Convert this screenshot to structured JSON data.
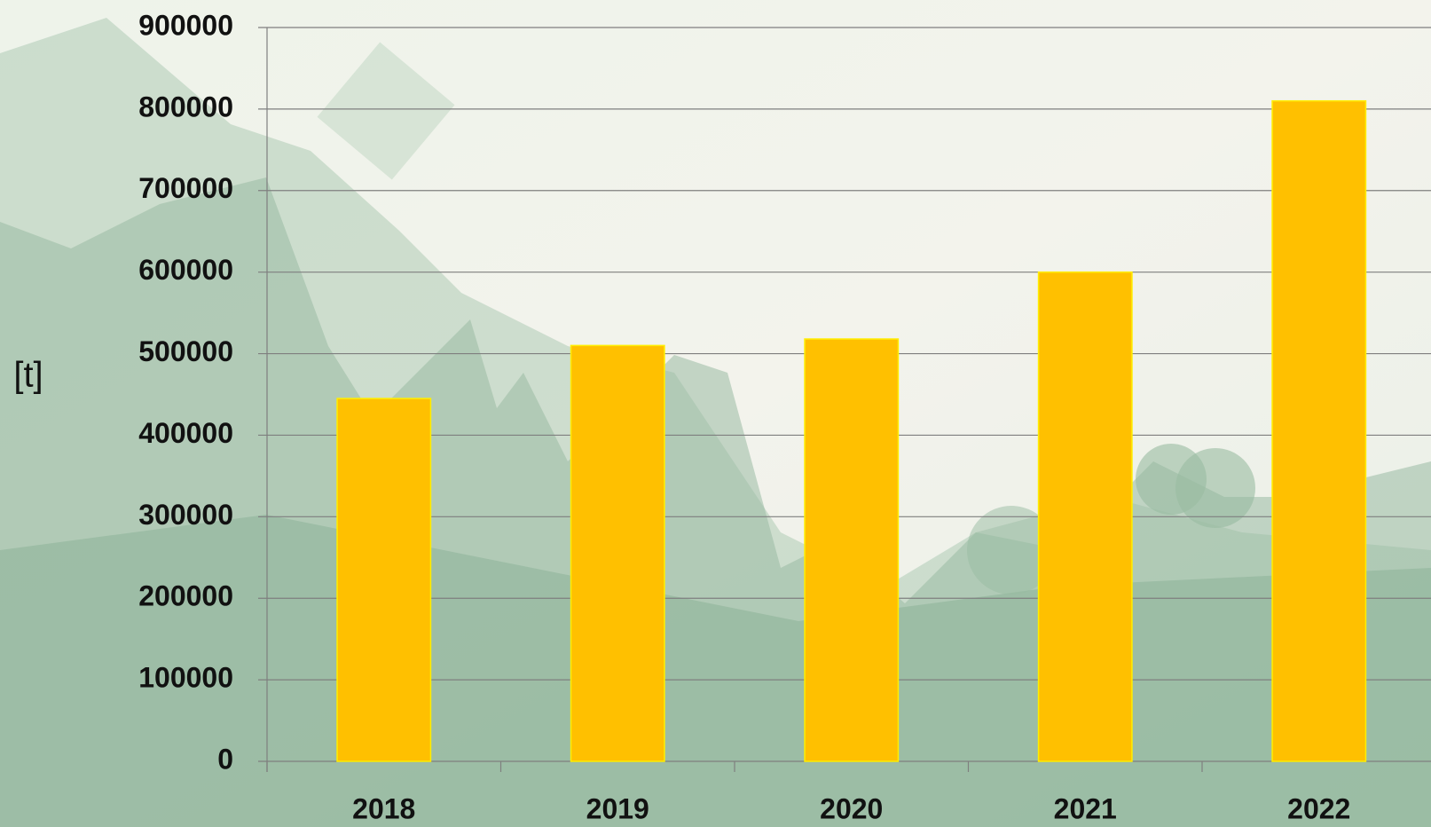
{
  "chart_data": {
    "type": "bar",
    "y_label": "[t]",
    "categories": [
      "2018",
      "2019",
      "2020",
      "2021",
      "2022"
    ],
    "values": [
      445000,
      510000,
      518000,
      600000,
      810000
    ],
    "color": "#ffc000",
    "ylim": [
      0,
      900000
    ],
    "yticks": [
      0,
      100000,
      200000,
      300000,
      400000,
      500000,
      600000,
      700000,
      800000,
      900000
    ],
    "grid": true
  }
}
